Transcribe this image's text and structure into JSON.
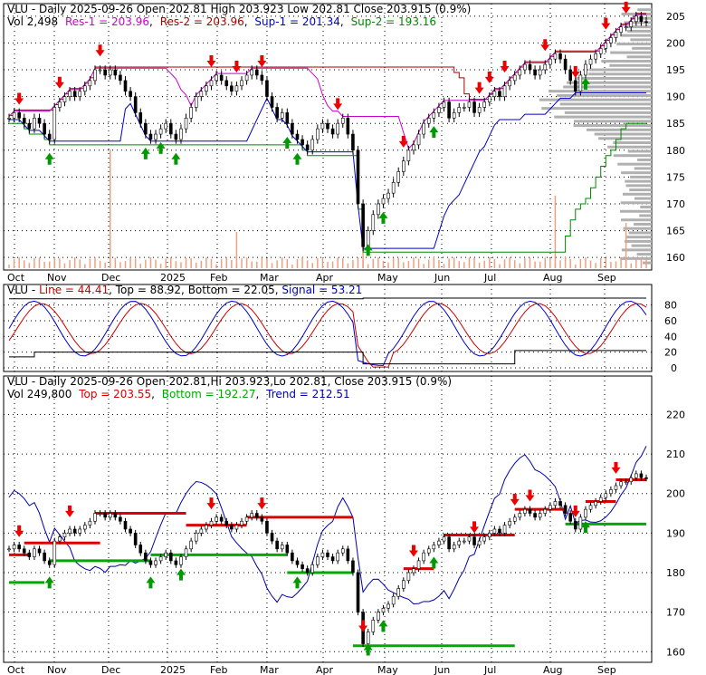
{
  "chart_data": [
    {
      "type": "candlestick",
      "title": "VLU - Daily 2025-09-26 Open 202.81  High 203.923  Low 202.81  Close 203.915 (0.9%)",
      "info": {
        "vol": "Vol 2,498",
        "res1": "Res-1 = 203.96",
        "res2": "Res-2 = 203.96",
        "sup1": "Sup-1 = 201.34",
        "sup2": "Sup-2 = 193.16"
      },
      "ylim": [
        158,
        207
      ],
      "yticks": [
        160,
        165,
        170,
        175,
        180,
        185,
        190,
        195,
        200,
        205
      ],
      "xticks": [
        "Oct",
        "Nov",
        "Dec",
        "2025",
        "Feb",
        "Mar",
        "Apr",
        "May",
        "Jun",
        "Jul",
        "Aug",
        "Sep"
      ],
      "colors": {
        "res1": "#cc00cc",
        "res2": "#aa0000",
        "sup1": "#0000cc",
        "sup2": "#008800",
        "volume": "#f0a080",
        "profile": "#b0b0b0"
      }
    },
    {
      "type": "line",
      "title": "VLU - Line = 44.41, Top = 88.92, Bottom = 22.05, Signal = 53.21",
      "labels": {
        "name": "VLU",
        "line": "Line = 44.41",
        "top": "Top = 88.92",
        "bottom": "Bottom = 22.05",
        "signal": "Signal = 53.21"
      },
      "ylim": [
        0,
        90
      ],
      "yticks": [
        0,
        20,
        40,
        60,
        80
      ],
      "colors": {
        "line": "#0000cc",
        "signal": "#cc0000",
        "bounds": "#000000"
      }
    },
    {
      "type": "candlestick",
      "title": "VLU - Daily 2025-09-26 Open 202.81,Hi 203.923,Lo 202.81,  Close 203.915 (0.9%)",
      "info": {
        "vol": "Vol 249,800",
        "top": "Top = 203.55",
        "bottom": "Bottom = 192.27",
        "trend": "Trend = 212.51"
      },
      "ylim": [
        158,
        224
      ],
      "yticks": [
        160,
        170,
        180,
        190,
        200,
        210,
        220
      ],
      "xticks": [
        "Oct",
        "Nov",
        "Dec",
        "2025",
        "Feb",
        "Mar",
        "Apr",
        "May",
        "Jun",
        "Jul",
        "Aug",
        "Sep"
      ],
      "colors": {
        "top": "#dd0000",
        "bottom": "#00aa00",
        "trend": "#0000aa"
      }
    }
  ],
  "closes": [
    186,
    187,
    186,
    185,
    184,
    186,
    185,
    183,
    182,
    188,
    189,
    190,
    191,
    190,
    191,
    192,
    193,
    195,
    195,
    194,
    195,
    194,
    193,
    191,
    190,
    187,
    185,
    183,
    182,
    183,
    184,
    185,
    183,
    182,
    184,
    186,
    188,
    190,
    191,
    192,
    193,
    194,
    193,
    192,
    191,
    192,
    193,
    194,
    195,
    194,
    193,
    190,
    188,
    186,
    187,
    185,
    183,
    182,
    181,
    180,
    182,
    184,
    185,
    184,
    183,
    185,
    186,
    183,
    180,
    170,
    162,
    165,
    168,
    170,
    171,
    172,
    174,
    176,
    178,
    180,
    181,
    183,
    185,
    186,
    187,
    188,
    189,
    186,
    187,
    188,
    188,
    189,
    187,
    188,
    189,
    190,
    191,
    190,
    192,
    193,
    194,
    195,
    196,
    195,
    194,
    195,
    196,
    197,
    198,
    197,
    195,
    193,
    191,
    194,
    196,
    197,
    198,
    199,
    200,
    201,
    202,
    203,
    203,
    204,
    205,
    204,
    203.9
  ]
}
